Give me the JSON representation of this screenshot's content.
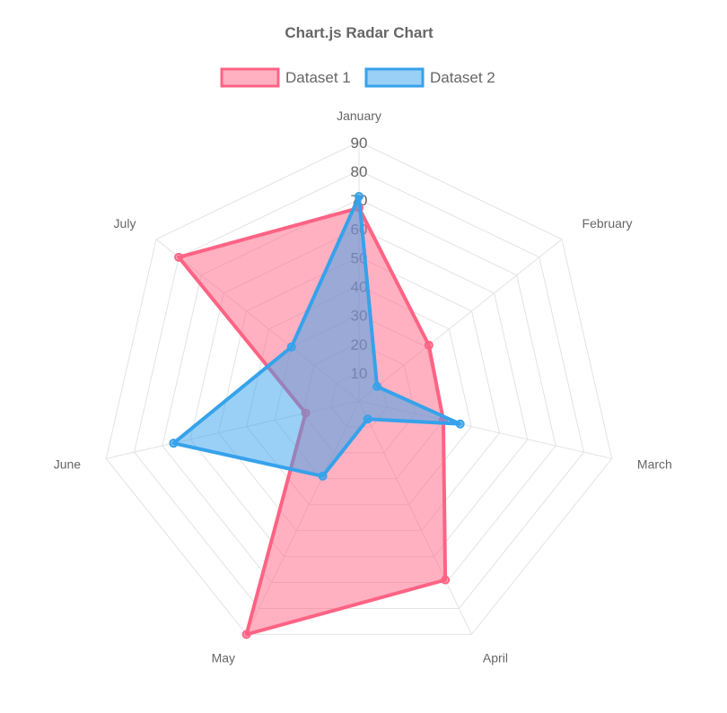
{
  "chart_data": {
    "type": "radar",
    "title": "Chart.js Radar Chart",
    "labels": [
      "January",
      "February",
      "March",
      "April",
      "May",
      "June",
      "July"
    ],
    "ticks": [
      10,
      20,
      30,
      40,
      50,
      60,
      70,
      80,
      90
    ],
    "range": [
      0,
      90
    ],
    "grid": true,
    "legend_position": "top",
    "series": [
      {
        "name": "Dataset 1",
        "values": [
          67,
          31,
          30,
          69,
          90,
          19,
          80
        ],
        "border": "#ff6384",
        "fill": "rgba(255,99,132,0.5)"
      },
      {
        "name": "Dataset 2",
        "values": [
          71,
          8,
          36,
          7,
          29,
          66,
          30
        ],
        "border": "#36a2eb",
        "fill": "rgba(54,162,235,0.5)"
      }
    ]
  }
}
